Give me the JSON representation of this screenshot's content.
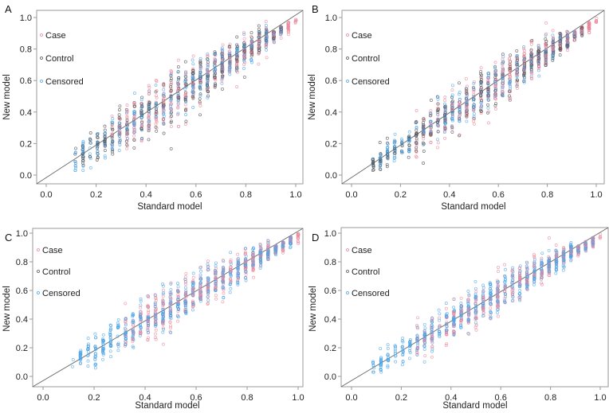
{
  "figure": {
    "colors": {
      "Case": "#e9879b",
      "Control": "#555555",
      "Censored": "#4aa3e6"
    }
  },
  "chart_data": [
    {
      "panel": "A",
      "type": "scatter",
      "xlabel": "Standard model",
      "ylabel": "New model",
      "xlim": [
        0.0,
        1.0
      ],
      "ylim": [
        0.0,
        1.0
      ],
      "xticks": [
        "0.0",
        "0.2",
        "0.4",
        "0.6",
        "0.8",
        "1.0"
      ],
      "yticks": [
        "0.0",
        "0.2",
        "0.4",
        "0.6",
        "0.8",
        "1.0"
      ],
      "reference_line": "y = x",
      "legend": {
        "placement": "top-left",
        "entries": [
          "Case",
          "Control",
          "Censored"
        ]
      },
      "series": [
        {
          "name": "Case",
          "x_range": [
            0.25,
            1.0
          ],
          "n": 420,
          "spread": 0.09
        },
        {
          "name": "Control",
          "x_range": [
            0.12,
            0.95
          ],
          "n": 380,
          "spread": 0.09
        },
        {
          "name": "Censored",
          "x_range": [
            0.1,
            0.95
          ],
          "n": 380,
          "spread": 0.08
        }
      ]
    },
    {
      "panel": "B",
      "type": "scatter",
      "xlabel": "Standard model",
      "ylabel": "New model",
      "xlim": [
        0.0,
        1.0
      ],
      "ylim": [
        0.0,
        1.0
      ],
      "xticks": [
        "0.0",
        "0.2",
        "0.4",
        "0.6",
        "0.8",
        "1.0"
      ],
      "yticks": [
        "0.0",
        "0.2",
        "0.4",
        "0.6",
        "0.8",
        "1.0"
      ],
      "reference_line": "y = x",
      "legend": {
        "placement": "top-left",
        "entries": [
          "Case",
          "Control",
          "Censored"
        ]
      },
      "series": [
        {
          "name": "Case",
          "x_range": [
            0.25,
            1.0
          ],
          "n": 420,
          "spread": 0.08
        },
        {
          "name": "Control",
          "x_range": [
            0.08,
            0.95
          ],
          "n": 380,
          "spread": 0.08
        },
        {
          "name": "Censored",
          "x_range": [
            0.07,
            0.95
          ],
          "n": 380,
          "spread": 0.07
        }
      ]
    },
    {
      "panel": "C",
      "type": "scatter",
      "xlabel": "Standard model",
      "ylabel": "New model",
      "xlim": [
        0.0,
        1.0
      ],
      "ylim": [
        0.0,
        1.0
      ],
      "xticks": [
        "0.0",
        "0.2",
        "0.4",
        "0.6",
        "0.8",
        "1.0"
      ],
      "yticks": [
        "0.0",
        "0.2",
        "0.4",
        "0.6",
        "0.8",
        "1.0"
      ],
      "reference_line": "y = x",
      "legend": {
        "placement": "top-left",
        "entries": [
          "Case",
          "Control",
          "Censored"
        ]
      },
      "series": [
        {
          "name": "Case",
          "x_range": [
            0.3,
            1.0
          ],
          "n": 480,
          "spread": 0.09
        },
        {
          "name": "Control",
          "x_range": [
            0.3,
            0.9
          ],
          "n": 0,
          "spread": 0.09
        },
        {
          "name": "Censored",
          "x_range": [
            0.13,
            0.98
          ],
          "n": 620,
          "spread": 0.08
        }
      ]
    },
    {
      "panel": "D",
      "type": "scatter",
      "xlabel": "Standard model",
      "ylabel": "New model",
      "xlim": [
        0.0,
        1.0
      ],
      "ylim": [
        0.0,
        1.0
      ],
      "xticks": [
        "0.0",
        "0.2",
        "0.4",
        "0.6",
        "0.8",
        "1.0"
      ],
      "yticks": [
        "0.0",
        "0.2",
        "0.4",
        "0.6",
        "0.8",
        "1.0"
      ],
      "reference_line": "y = x",
      "legend": {
        "placement": "top-left",
        "entries": [
          "Case",
          "Control",
          "Censored"
        ]
      },
      "series": [
        {
          "name": "Case",
          "x_range": [
            0.25,
            1.0
          ],
          "n": 420,
          "spread": 0.08
        },
        {
          "name": "Control",
          "x_range": [
            0.3,
            0.9
          ],
          "n": 0,
          "spread": 0.08
        },
        {
          "name": "Censored",
          "x_range": [
            0.09,
            0.98
          ],
          "n": 640,
          "spread": 0.07
        }
      ]
    }
  ]
}
